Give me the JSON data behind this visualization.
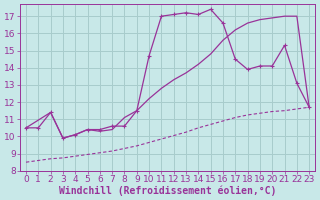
{
  "background_color": "#c8e8e8",
  "grid_color": "#a8cccc",
  "line_color": "#993399",
  "xlabel": "Windchill (Refroidissement éolien,°C)",
  "xlabel_fontsize": 7.0,
  "tick_fontsize": 6.5,
  "xlim": [
    -0.5,
    23.5
  ],
  "ylim": [
    8.0,
    17.7
  ],
  "yticks": [
    8,
    9,
    10,
    11,
    12,
    13,
    14,
    15,
    16,
    17
  ],
  "xticks": [
    0,
    1,
    2,
    3,
    4,
    5,
    6,
    7,
    8,
    9,
    10,
    11,
    12,
    13,
    14,
    15,
    16,
    17,
    18,
    19,
    20,
    21,
    22,
    23
  ],
  "line1_x": [
    0,
    1,
    2,
    3,
    4,
    5,
    6,
    7,
    8,
    9,
    10,
    11,
    12,
    13,
    14,
    15,
    16,
    17,
    18,
    19,
    20,
    21,
    22,
    23
  ],
  "line1_y": [
    10.5,
    10.5,
    11.4,
    9.9,
    10.1,
    10.4,
    10.4,
    10.6,
    10.6,
    11.5,
    14.7,
    17.0,
    17.1,
    17.2,
    17.1,
    17.4,
    16.6,
    14.5,
    13.9,
    14.1,
    14.1,
    15.3,
    13.1,
    11.7
  ],
  "line2_x": [
    0,
    2,
    3,
    4,
    5,
    6,
    7,
    8,
    9,
    10,
    11,
    12,
    13,
    14,
    15,
    16,
    17,
    18,
    19,
    20,
    21,
    22,
    23
  ],
  "line2_y": [
    10.5,
    11.4,
    9.9,
    10.1,
    10.4,
    10.3,
    10.4,
    11.1,
    11.5,
    12.2,
    12.8,
    13.3,
    13.7,
    14.2,
    14.8,
    15.6,
    16.2,
    16.6,
    16.8,
    16.9,
    17.0,
    17.0,
    11.7
  ],
  "line3_x": [
    0,
    1,
    2,
    3,
    4,
    5,
    6,
    7,
    8,
    9,
    10,
    11,
    12,
    13,
    14,
    15,
    16,
    17,
    18,
    19,
    20,
    21,
    22,
    23
  ],
  "line3_y": [
    8.5,
    8.6,
    8.7,
    8.75,
    8.85,
    8.95,
    9.05,
    9.15,
    9.3,
    9.45,
    9.65,
    9.85,
    10.05,
    10.25,
    10.5,
    10.7,
    10.9,
    11.1,
    11.25,
    11.35,
    11.45,
    11.5,
    11.6,
    11.7
  ]
}
